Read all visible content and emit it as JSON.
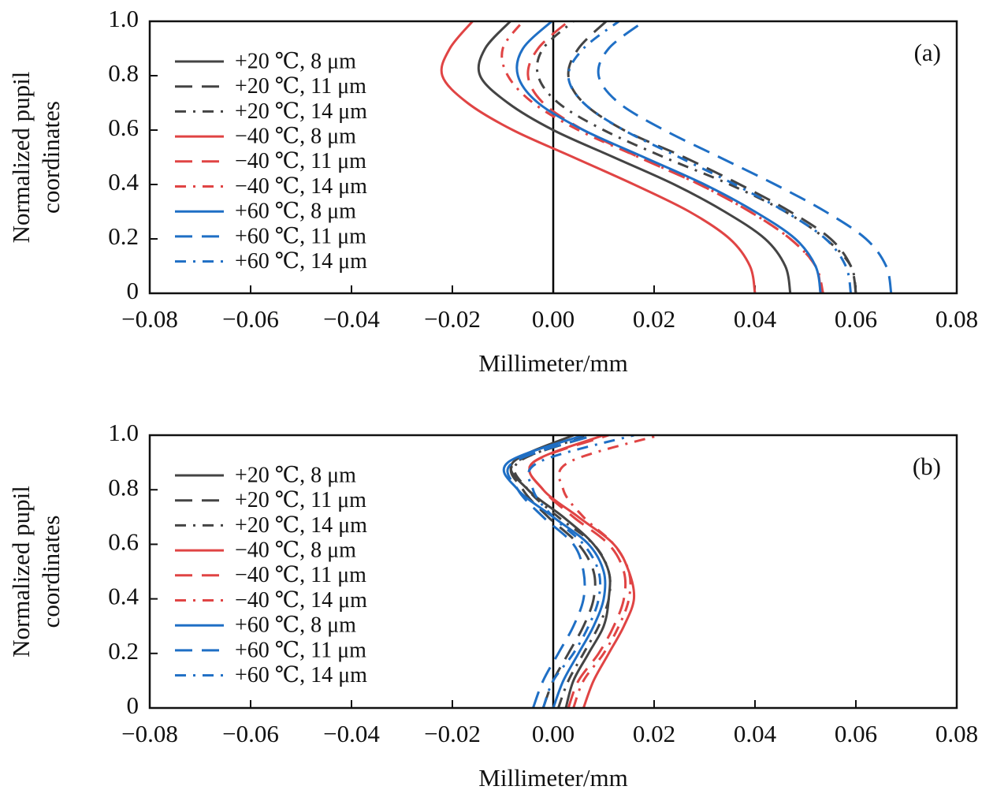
{
  "chart_data": [
    {
      "type": "line",
      "panel": "(a)",
      "xlabel": "Millimeter/mm",
      "ylabel": [
        "Normalized pupil",
        "coordinates"
      ],
      "xlim": [
        -0.08,
        0.08
      ],
      "ylim": [
        0,
        1
      ],
      "xticks": [
        {
          "value": -0.08,
          "label": "−0.08"
        },
        {
          "value": -0.06,
          "label": "−0.06"
        },
        {
          "value": -0.04,
          "label": "−0.04"
        },
        {
          "value": -0.02,
          "label": "−0.02"
        },
        {
          "value": 0,
          "label": "0.00"
        },
        {
          "value": 0.02,
          "label": "0.02"
        },
        {
          "value": 0.04,
          "label": "0.04"
        },
        {
          "value": 0.06,
          "label": "0.06"
        },
        {
          "value": 0.08,
          "label": "0.08"
        }
      ],
      "yticks": [
        0,
        0.2,
        0.4,
        0.6,
        0.8,
        {
          "value": 1,
          "label": "1.0"
        }
      ],
      "legend": "upper left",
      "y": [
        0,
        0.1,
        0.2,
        0.3,
        0.4,
        0.5,
        0.6,
        0.7,
        0.8,
        0.9,
        1.0
      ],
      "series": [
        {
          "name": "+20 ℃, 8 μm",
          "color": "#444444",
          "dash": "solid",
          "values": [
            0.047,
            0.046,
            0.042,
            0.034,
            0.024,
            0.012,
            0.0,
            -0.009,
            -0.0145,
            -0.0135,
            -0.0085
          ]
        },
        {
          "name": "+20 ℃, 11 μm",
          "color": "#444444",
          "dash": "dashed",
          "values": [
            0.06,
            0.059,
            0.055,
            0.047,
            0.037,
            0.026,
            0.014,
            0.006,
            0.003,
            0.005,
            0.0105
          ]
        },
        {
          "name": "+20 ℃, 14 μm",
          "color": "#444444",
          "dash": "dashdot",
          "values": [
            0.06,
            0.059,
            0.054,
            0.046,
            0.035,
            0.022,
            0.01,
            0.001,
            -0.003,
            -0.002,
            0.004
          ]
        },
        {
          "name": "−40 ℃, 8 μm",
          "color": "#e04444",
          "dash": "solid",
          "values": [
            0.04,
            0.039,
            0.035,
            0.027,
            0.016,
            0.004,
            -0.008,
            -0.017,
            -0.022,
            -0.0205,
            -0.016
          ]
        },
        {
          "name": "−40 ℃, 11 μm",
          "color": "#e04444",
          "dash": "dashed",
          "values": [
            0.053,
            0.052,
            0.047,
            0.039,
            0.029,
            0.017,
            0.006,
            -0.002,
            -0.005,
            -0.003,
            0.003
          ]
        },
        {
          "name": "−40 ℃, 14 μm",
          "color": "#e04444",
          "dash": "dashdot",
          "values": [
            0.0535,
            0.052,
            0.047,
            0.039,
            0.029,
            0.017,
            0.005,
            -0.004,
            -0.009,
            -0.01,
            -0.006
          ]
        },
        {
          "name": "+60 ℃, 8 μm",
          "color": "#1f6fc5",
          "dash": "solid",
          "values": [
            0.053,
            0.052,
            0.048,
            0.04,
            0.03,
            0.018,
            0.006,
            -0.003,
            -0.007,
            -0.006,
            -0.0003
          ]
        },
        {
          "name": "+60 ℃, 11 μm",
          "color": "#1f6fc5",
          "dash": "dashed",
          "values": [
            0.067,
            0.066,
            0.062,
            0.054,
            0.044,
            0.033,
            0.022,
            0.013,
            0.009,
            0.011,
            0.018
          ]
        },
        {
          "name": "+60 ℃, 14 μm",
          "color": "#1f6fc5",
          "dash": "dashdot",
          "values": [
            0.059,
            0.058,
            0.054,
            0.046,
            0.036,
            0.025,
            0.014,
            0.006,
            0.003,
            0.006,
            0.013
          ]
        }
      ]
    },
    {
      "type": "line",
      "panel": "(b)",
      "xlabel": "Millimeter/mm",
      "ylabel": [
        "Normalized pupil",
        "coordinates"
      ],
      "xlim": [
        -0.08,
        0.08
      ],
      "ylim": [
        0,
        1
      ],
      "xticks": [
        {
          "value": -0.08,
          "label": "−0.08"
        },
        {
          "value": -0.06,
          "label": "−0.06"
        },
        {
          "value": -0.04,
          "label": "−0.04"
        },
        {
          "value": -0.02,
          "label": "−0.02"
        },
        {
          "value": 0,
          "label": "0.00"
        },
        {
          "value": 0.02,
          "label": "0.02"
        },
        {
          "value": 0.04,
          "label": "0.04"
        },
        {
          "value": 0.06,
          "label": "0.06"
        },
        {
          "value": 0.08,
          "label": "0.08"
        }
      ],
      "yticks": [
        0,
        0.2,
        0.4,
        0.6,
        0.8,
        {
          "value": 1,
          "label": "1.0"
        }
      ],
      "legend": "upper left",
      "y": [
        0,
        0.1,
        0.2,
        0.3,
        0.4,
        0.5,
        0.6,
        0.7,
        0.8,
        0.9,
        1.0
      ],
      "series": [
        {
          "name": "+20 ℃, 8 μm",
          "color": "#444444",
          "dash": "solid",
          "values": [
            0.0025,
            0.004,
            0.007,
            0.01,
            0.011,
            0.011,
            0.008,
            0.002,
            -0.005,
            -0.008,
            0.004
          ]
        },
        {
          "name": "+20 ℃, 11 μm",
          "color": "#444444",
          "dash": "dashed",
          "values": [
            -0.002,
            0.0,
            0.003,
            0.006,
            0.008,
            0.008,
            0.005,
            -0.001,
            -0.006,
            -0.0075,
            0.008
          ]
        },
        {
          "name": "+20 ℃, 14 μm",
          "color": "#444444",
          "dash": "dashdot",
          "values": [
            0.001,
            0.003,
            0.006,
            0.009,
            0.011,
            0.011,
            0.008,
            0.001,
            -0.005,
            -0.007,
            0.007
          ]
        },
        {
          "name": "−40 ℃, 8 μm",
          "color": "#e04444",
          "dash": "solid",
          "values": [
            0.006,
            0.008,
            0.011,
            0.014,
            0.016,
            0.015,
            0.012,
            0.005,
            -0.002,
            -0.004,
            0.01
          ]
        },
        {
          "name": "−40 ℃, 11 μm",
          "color": "#e04444",
          "dash": "dashed",
          "values": [
            0.003,
            0.005,
            0.009,
            0.012,
            0.014,
            0.014,
            0.011,
            0.004,
            -0.002,
            -0.004,
            0.011
          ]
        },
        {
          "name": "−40 ℃, 14 μm",
          "color": "#e04444",
          "dash": "dashdot",
          "values": [
            0.004,
            0.006,
            0.01,
            0.013,
            0.015,
            0.015,
            0.012,
            0.006,
            0.002,
            0.003,
            0.021
          ]
        },
        {
          "name": "+60 ℃, 8 μm",
          "color": "#1f6fc5",
          "dash": "solid",
          "values": [
            0.0,
            0.002,
            0.005,
            0.008,
            0.01,
            0.01,
            0.007,
            0.0,
            -0.007,
            -0.009,
            0.006
          ]
        },
        {
          "name": "+60 ℃, 11 μm",
          "color": "#1f6fc5",
          "dash": "dashed",
          "values": [
            -0.004,
            -0.002,
            0.001,
            0.004,
            0.006,
            0.006,
            0.004,
            -0.002,
            -0.007,
            -0.008,
            0.008
          ]
        },
        {
          "name": "+60 ℃, 14 μm",
          "color": "#1f6fc5",
          "dash": "dashdot",
          "values": [
            -0.002,
            0.0,
            0.004,
            0.007,
            0.009,
            0.009,
            0.006,
            0.0,
            -0.004,
            -0.003,
            0.016
          ]
        }
      ]
    }
  ]
}
